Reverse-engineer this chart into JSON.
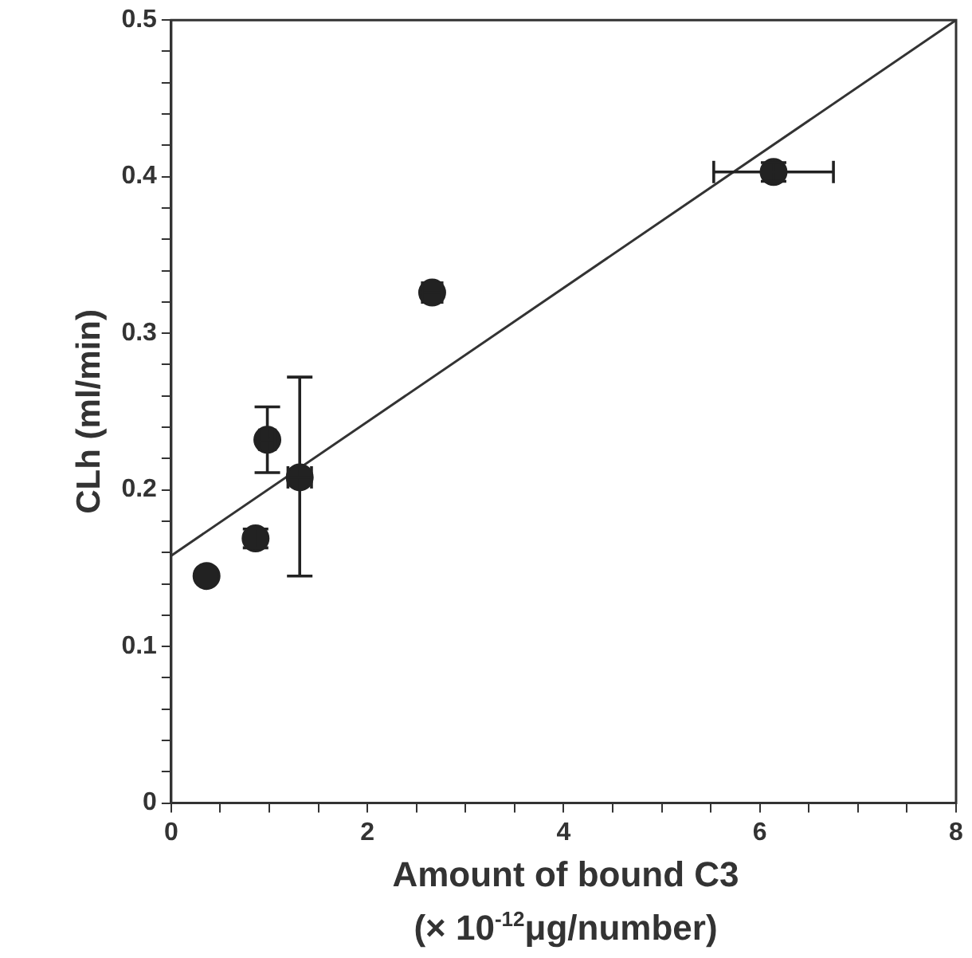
{
  "chart_data": {
    "type": "scatter",
    "xlabel": "Amount of bound C3\n(× 10$^{-12}$μg/number)",
    "ylabel": "CLh (ml/min)",
    "xlim": [
      0,
      8
    ],
    "xticks": [
      0,
      {
        "value": 0.5,
        "label": null
      },
      {
        "value": 1,
        "label": null
      },
      {
        "value": 1.5,
        "label": null
      },
      2,
      {
        "value": 2.5,
        "label": null
      },
      {
        "value": 3,
        "label": null
      },
      {
        "value": 3.5,
        "label": null
      },
      4,
      {
        "value": 4.5,
        "label": null
      },
      {
        "value": 5,
        "label": null
      },
      {
        "value": 5.5,
        "label": null
      },
      6,
      {
        "value": 6.5,
        "label": null
      },
      {
        "value": 7,
        "label": null
      },
      {
        "value": 7.5,
        "label": null
      },
      8
    ],
    "ylim": [
      0,
      0.5
    ],
    "yticks": [
      0,
      {
        "value": 0.02,
        "label": null
      },
      {
        "value": 0.04,
        "label": null
      },
      {
        "value": 0.06,
        "label": null
      },
      {
        "value": 0.08,
        "label": null
      },
      0.1,
      {
        "value": 0.12,
        "label": null
      },
      {
        "value": 0.14,
        "label": null
      },
      {
        "value": 0.16,
        "label": null
      },
      {
        "value": 0.18,
        "label": null
      },
      0.2,
      {
        "value": 0.22,
        "label": null
      },
      {
        "value": 0.24,
        "label": null
      },
      {
        "value": 0.26,
        "label": null
      },
      {
        "value": 0.28,
        "label": null
      },
      0.3,
      {
        "value": 0.32,
        "label": null
      },
      {
        "value": 0.34,
        "label": null
      },
      {
        "value": 0.36,
        "label": null
      },
      {
        "value": 0.38,
        "label": null
      },
      0.4,
      {
        "value": 0.42,
        "label": null
      },
      {
        "value": 0.44,
        "label": null
      },
      {
        "value": 0.46,
        "label": null
      },
      {
        "value": 0.48,
        "label": null
      },
      0.5
    ],
    "grid": false,
    "legend": false,
    "series": [
      {
        "color": "#222222",
        "marker": "circle",
        "x": [
          0.36,
          0.86,
          0.98,
          1.31,
          2.66,
          6.14
        ],
        "values": [
          0.145,
          0.169,
          0.232,
          0.208,
          0.326,
          0.403
        ],
        "errors": [
          null,
          0.006,
          0.021,
          [
            0.145,
            0.272
          ],
          null,
          0.006
        ],
        "xerrors": [
          null,
          null,
          0.08,
          0.12,
          0.1,
          0.61
        ]
      },
      {
        "type": "line",
        "color": "#333333",
        "marker": "none",
        "line_style": "solid",
        "x": [
          0,
          8
        ],
        "values": [
          0.158,
          0.5
        ]
      }
    ]
  }
}
